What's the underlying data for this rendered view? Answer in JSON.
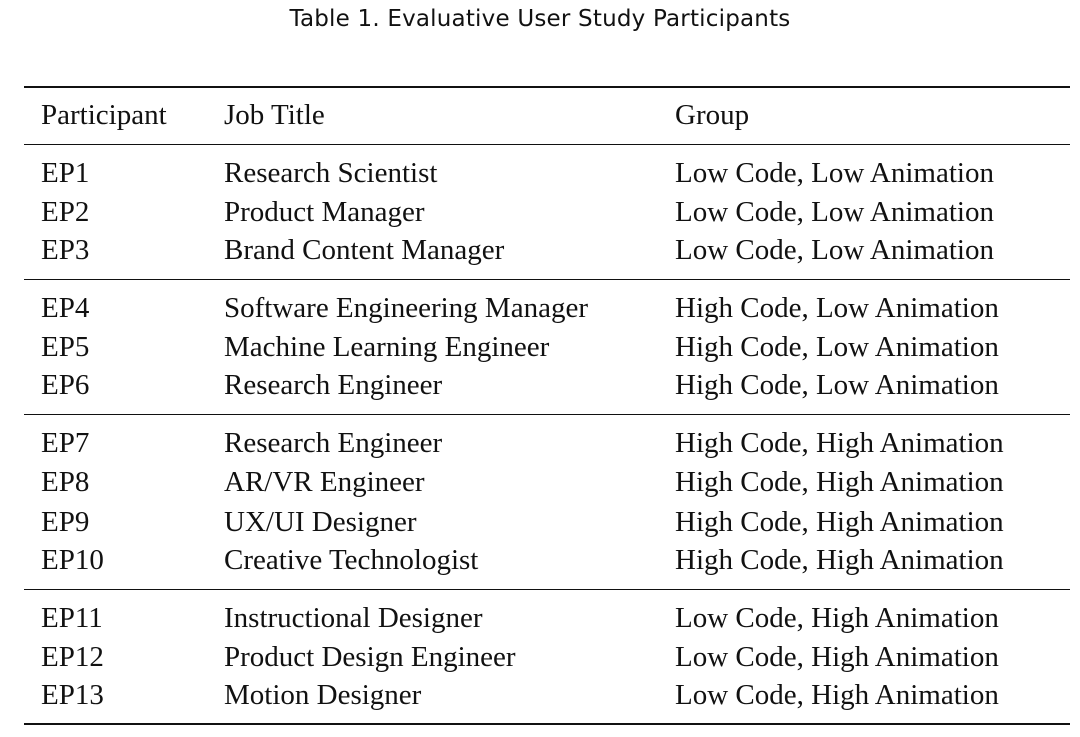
{
  "caption": "Table 1.  Evaluative User Study Participants",
  "headers": {
    "participant": "Participant",
    "job_title": "Job Title",
    "group": "Group"
  },
  "groups": [
    {
      "rows": [
        {
          "participant": "EP1",
          "job_title": "Research Scientist",
          "group": "Low Code, Low Animation"
        },
        {
          "participant": "EP2",
          "job_title": "Product Manager",
          "group": "Low Code, Low Animation"
        },
        {
          "participant": "EP3",
          "job_title": "Brand Content Manager",
          "group": "Low Code, Low Animation"
        }
      ]
    },
    {
      "rows": [
        {
          "participant": "EP4",
          "job_title": "Software Engineering Manager",
          "group": "High Code, Low Animation"
        },
        {
          "participant": "EP5",
          "job_title": "Machine Learning Engineer",
          "group": "High Code, Low Animation"
        },
        {
          "participant": "EP6",
          "job_title": "Research Engineer",
          "group": "High Code, Low Animation"
        }
      ]
    },
    {
      "rows": [
        {
          "participant": "EP7",
          "job_title": "Research Engineer",
          "group": "High Code, High Animation"
        },
        {
          "participant": "EP8",
          "job_title": "AR/VR Engineer",
          "group": "High Code, High Animation"
        },
        {
          "participant": "EP9",
          "job_title": "UX/UI Designer",
          "group": "High Code, High Animation"
        },
        {
          "participant": "EP10",
          "job_title": "Creative Technologist",
          "group": "High Code, High Animation"
        }
      ]
    },
    {
      "rows": [
        {
          "participant": "EP11",
          "job_title": "Instructional Designer",
          "group": "Low Code, High Animation"
        },
        {
          "participant": "EP12",
          "job_title": "Product Design Engineer",
          "group": "Low Code, High Animation"
        },
        {
          "participant": "EP13",
          "job_title": "Motion Designer",
          "group": "Low Code, High Animation"
        }
      ]
    }
  ]
}
